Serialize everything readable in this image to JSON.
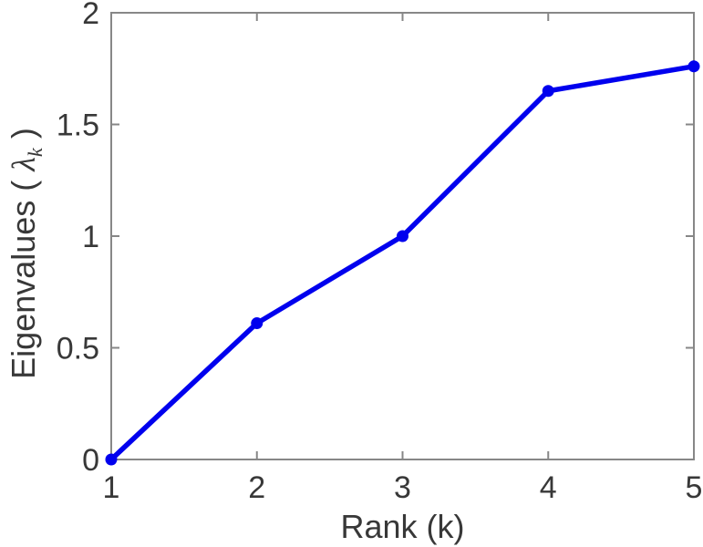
{
  "figure": {
    "background": "#ffffff"
  },
  "chart_data": {
    "type": "line",
    "title": "",
    "xlabel": "Rank (k)",
    "ylabel_parts": {
      "prefix": "Eigenvalues ( ",
      "symbol": "λ",
      "subscript": "k",
      "suffix": " )"
    },
    "x": [
      1,
      2,
      3,
      4,
      5
    ],
    "y": [
      0,
      0.61,
      1.0,
      1.65,
      1.76
    ],
    "xlim": [
      1,
      5
    ],
    "ylim": [
      0,
      2
    ],
    "xticks": {
      "values": [
        1,
        2,
        3,
        4,
        5
      ],
      "labels": [
        "1",
        "2",
        "3",
        "4",
        "5"
      ]
    },
    "yticks": {
      "values": [
        0,
        0.5,
        1,
        1.5,
        2
      ],
      "labels": [
        "0",
        "0.5",
        "1",
        "1.5",
        "2"
      ]
    },
    "grid": false,
    "legend": null,
    "marker": "circle",
    "line_style": "solid",
    "colors": {
      "line": "#0000ee",
      "axis": "#878787",
      "text": "#383838"
    }
  }
}
